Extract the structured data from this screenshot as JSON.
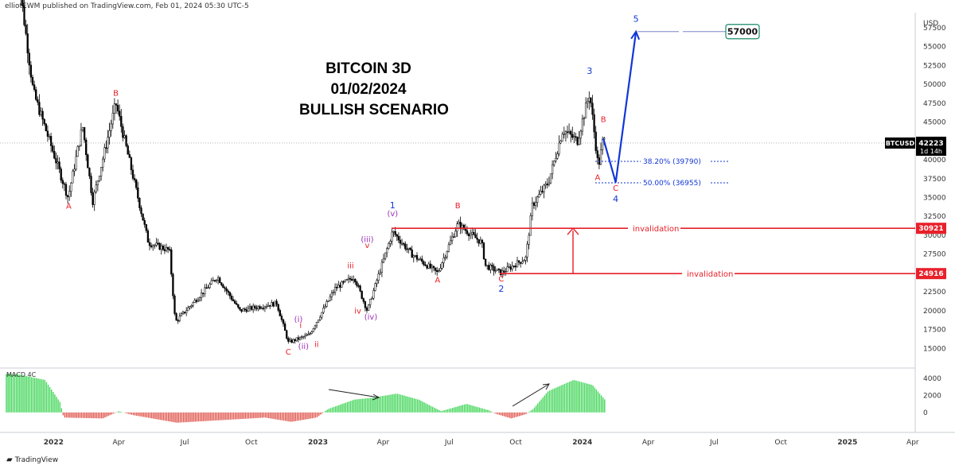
{
  "header": {
    "text": "elliotEWM published on TradingView.com, Feb 01, 2024 05:30 UTC-5"
  },
  "footer": {
    "brand": "TradingView",
    "brand_icon": "tradingview-logo-icon"
  },
  "title_lines": [
    "BITCOIN 3D",
    "01/02/2024",
    "BULLISH  SCENARIO"
  ],
  "price_axis": {
    "currency": "USD",
    "ticks": [
      15000,
      17500,
      20000,
      22500,
      25000,
      27500,
      30000,
      32500,
      35000,
      37500,
      40000,
      42500,
      45000,
      47500,
      50000,
      52500,
      55000,
      57500
    ],
    "symbol_label": "BTCUSD",
    "last_price": "42223",
    "countdown": "1d 14h",
    "level_30921": "30921",
    "level_24916": "24916"
  },
  "time_axis": {
    "labels": [
      "2022",
      "Apr",
      "Jul",
      "Oct",
      "2023",
      "Apr",
      "Jul",
      "Oct",
      "2024",
      "Apr",
      "Jul",
      "Oct",
      "2025",
      "Apr"
    ]
  },
  "macd": {
    "label": "MACD 4C",
    "ticks": [
      "4000",
      "2000",
      "0"
    ]
  },
  "colors": {
    "red": "#e8202a",
    "blue": "#1236d6",
    "purple": "#9a2fb8",
    "up": "#26a69a",
    "macd_green": "#43d65a",
    "macd_red": "#e0574f"
  },
  "chart_data": {
    "type": "candlestick",
    "symbol": "BTCUSD",
    "interval": "3D",
    "y_axis": {
      "label": "USD",
      "ylim": [
        12500,
        59500
      ]
    },
    "x_axis": {
      "ticks": [
        "2022",
        "Apr",
        "Jul",
        "Oct",
        "2023",
        "Apr",
        "Jul",
        "Oct",
        "2024",
        "Apr",
        "Jul",
        "Oct",
        "2025",
        "Apr"
      ]
    },
    "price_path": [
      {
        "t": "2021-11-10",
        "v": 67000
      },
      {
        "t": "2021-12-04",
        "v": 49000
      },
      {
        "t": "2022-01-21",
        "v": 35000
      },
      {
        "t": "2022-02-10",
        "v": 44500
      },
      {
        "t": "2022-02-24",
        "v": 34500
      },
      {
        "t": "2022-03-28",
        "v": 47500
      },
      {
        "t": "2022-05-12",
        "v": 29000
      },
      {
        "t": "2022-06-10",
        "v": 28000
      },
      {
        "t": "2022-06-18",
        "v": 18500
      },
      {
        "t": "2022-08-15",
        "v": 24500
      },
      {
        "t": "2022-09-15",
        "v": 20000
      },
      {
        "t": "2022-11-05",
        "v": 21000
      },
      {
        "t": "2022-11-21",
        "v": 15800
      },
      {
        "t": "2022-12-20",
        "v": 16800
      },
      {
        "t": "2023-01-25",
        "v": 23000
      },
      {
        "t": "2023-02-20",
        "v": 24500
      },
      {
        "t": "2023-03-10",
        "v": 20000
      },
      {
        "t": "2023-04-14",
        "v": 30500
      },
      {
        "t": "2023-05-10",
        "v": 27500
      },
      {
        "t": "2023-06-15",
        "v": 25000
      },
      {
        "t": "2023-07-13",
        "v": 31500
      },
      {
        "t": "2023-08-15",
        "v": 29000
      },
      {
        "t": "2023-08-20",
        "v": 26000
      },
      {
        "t": "2023-09-11",
        "v": 25000
      },
      {
        "t": "2023-10-15",
        "v": 27000
      },
      {
        "t": "2023-10-24",
        "v": 34000
      },
      {
        "t": "2023-11-15",
        "v": 37000
      },
      {
        "t": "2023-12-05",
        "v": 44000
      },
      {
        "t": "2023-12-25",
        "v": 42500
      },
      {
        "t": "2024-01-11",
        "v": 48900
      },
      {
        "t": "2024-01-23",
        "v": 39000
      },
      {
        "t": "2024-01-30",
        "v": 43000
      },
      {
        "t": "2024-02-01",
        "v": 42223
      }
    ],
    "wave_labels": [
      {
        "text": "A",
        "t": "2022-01-22",
        "v": 33500,
        "color": "red"
      },
      {
        "text": "B",
        "t": "2022-03-28",
        "v": 48500,
        "color": "red"
      },
      {
        "text": "C",
        "t": "2022-11-21",
        "v": 14200,
        "color": "red"
      },
      {
        "text": "(i)",
        "t": "2022-12-05",
        "v": 18500,
        "color": "purple"
      },
      {
        "text": "i",
        "t": "2022-12-08",
        "v": 17700,
        "color": "red"
      },
      {
        "text": "(ii)",
        "t": "2022-12-12",
        "v": 14900,
        "color": "purple"
      },
      {
        "text": "ii",
        "t": "2022-12-30",
        "v": 15200,
        "color": "red"
      },
      {
        "text": "iii",
        "t": "2023-02-15",
        "v": 25600,
        "color": "red"
      },
      {
        "text": "iv",
        "t": "2023-02-25",
        "v": 19600,
        "color": "red"
      },
      {
        "text": "v",
        "t": "2023-03-10",
        "v": 28300,
        "color": "red"
      },
      {
        "text": "(iii)",
        "t": "2023-03-10",
        "v": 29100,
        "color": "purple"
      },
      {
        "text": "(iv)",
        "t": "2023-03-15",
        "v": 18800,
        "color": "purple"
      },
      {
        "text": "1",
        "t": "2023-04-14",
        "v": 33600,
        "color": "blue"
      },
      {
        "text": "(v)",
        "t": "2023-04-14",
        "v": 32500,
        "color": "purple"
      },
      {
        "text": "A",
        "t": "2023-06-15",
        "v": 23700,
        "color": "red"
      },
      {
        "text": "B",
        "t": "2023-07-13",
        "v": 33600,
        "color": "red"
      },
      {
        "text": "C",
        "t": "2023-09-11",
        "v": 23900,
        "color": "red"
      },
      {
        "text": "2",
        "t": "2023-09-11",
        "v": 22500,
        "color": "blue"
      },
      {
        "text": "3",
        "t": "2024-01-11",
        "v": 51400,
        "color": "blue"
      },
      {
        "text": "B",
        "t": "2024-01-30",
        "v": 45000,
        "color": "red"
      },
      {
        "text": "A",
        "t": "2024-01-22",
        "v": 37300,
        "color": "red"
      },
      {
        "text": "C",
        "t": "2024-02-16",
        "v": 35900,
        "color": "red"
      },
      {
        "text": "4",
        "t": "2024-02-16",
        "v": 34400,
        "color": "blue"
      },
      {
        "text": "5",
        "t": "2024-03-15",
        "v": 58300,
        "color": "blue"
      }
    ],
    "projection": [
      {
        "t": "2024-01-30",
        "v": 42800
      },
      {
        "t": "2024-02-16",
        "v": 37000
      },
      {
        "t": "2024-03-15",
        "v": 57000
      }
    ],
    "fib_levels": [
      {
        "label": "38.20% (39790)",
        "value": 39790
      },
      {
        "label": "50.00% (36955)",
        "value": 36955
      }
    ],
    "invalidation_levels": [
      {
        "label": "invalidation",
        "value": 30921
      },
      {
        "label": "invalidation",
        "value": 24916
      }
    ],
    "target": {
      "label": "57000",
      "value": 57000
    },
    "macd_histogram": {
      "name": "MACD 4C",
      "ylim": [
        -1500,
        5000
      ],
      "points": [
        {
          "t": "2021-11-10",
          "v": 4500
        },
        {
          "t": "2021-12-20",
          "v": 3800
        },
        {
          "t": "2022-01-10",
          "v": 1200
        },
        {
          "t": "2022-01-15",
          "v": -600
        },
        {
          "t": "2022-03-10",
          "v": -700
        },
        {
          "t": "2022-04-01",
          "v": 150
        },
        {
          "t": "2022-04-20",
          "v": -300
        },
        {
          "t": "2022-06-20",
          "v": -1200
        },
        {
          "t": "2022-09-10",
          "v": -800
        },
        {
          "t": "2022-10-20",
          "v": -600
        },
        {
          "t": "2022-11-25",
          "v": -1100
        },
        {
          "t": "2022-12-30",
          "v": -600
        },
        {
          "t": "2023-01-15",
          "v": 400
        },
        {
          "t": "2023-02-20",
          "v": 1500
        },
        {
          "t": "2023-03-15",
          "v": 1700
        },
        {
          "t": "2023-04-20",
          "v": 2200
        },
        {
          "t": "2023-05-20",
          "v": 1500
        },
        {
          "t": "2023-06-20",
          "v": 150
        },
        {
          "t": "2023-07-25",
          "v": 1000
        },
        {
          "t": "2023-08-25",
          "v": 250
        },
        {
          "t": "2023-09-05",
          "v": -200
        },
        {
          "t": "2023-09-25",
          "v": -700
        },
        {
          "t": "2023-10-15",
          "v": -200
        },
        {
          "t": "2023-10-25",
          "v": 400
        },
        {
          "t": "2023-11-15",
          "v": 2500
        },
        {
          "t": "2023-12-20",
          "v": 3800
        },
        {
          "t": "2024-01-15",
          "v": 3200
        },
        {
          "t": "2024-02-01",
          "v": 1500
        }
      ]
    }
  }
}
